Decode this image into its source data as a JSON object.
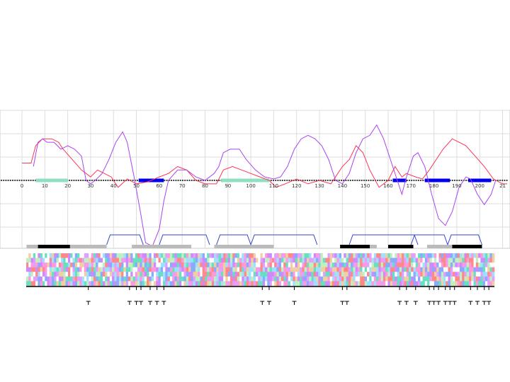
{
  "chart_data": {
    "type": "line",
    "x_ticks": [
      "0",
      "10",
      "20",
      "30",
      "40",
      "50",
      "60",
      "70",
      "80",
      "90",
      "100",
      "110",
      "120",
      "130",
      "140",
      "150",
      "160",
      "170",
      "180",
      "190",
      "200",
      "21"
    ],
    "xlim": [
      0,
      212
    ],
    "ylim": [
      -1.0,
      1.0
    ],
    "grid": true,
    "series": [
      {
        "color": "#ff3355",
        "points": [
          [
            0,
            0.25
          ],
          [
            4,
            0.25
          ],
          [
            6,
            0.5
          ],
          [
            9,
            0.6
          ],
          [
            11,
            0.6
          ],
          [
            13,
            0.6
          ],
          [
            16,
            0.55
          ],
          [
            18,
            0.45
          ],
          [
            22,
            0.3
          ],
          [
            26,
            0.15
          ],
          [
            30,
            0.05
          ],
          [
            33,
            0.15
          ],
          [
            36,
            0.1
          ],
          [
            39,
            0.05
          ],
          [
            42,
            -0.1
          ],
          [
            46,
            0.02
          ],
          [
            50,
            -0.05
          ],
          [
            55,
            -0.02
          ],
          [
            60,
            0.05
          ],
          [
            64,
            0.1
          ],
          [
            68,
            0.2
          ],
          [
            72,
            0.15
          ],
          [
            76,
            0.0
          ],
          [
            80,
            -0.05
          ],
          [
            85,
            -0.05
          ],
          [
            88,
            0.15
          ],
          [
            92,
            0.2
          ],
          [
            96,
            0.15
          ],
          [
            100,
            0.1
          ],
          [
            104,
            0.05
          ],
          [
            108,
            0.0
          ],
          [
            111,
            -0.1
          ],
          [
            115,
            -0.05
          ],
          [
            120,
            0.02
          ],
          [
            125,
            -0.05
          ],
          [
            130,
            0.0
          ],
          [
            135,
            -0.05
          ],
          [
            138,
            0.1
          ],
          [
            140,
            0.2
          ],
          [
            143,
            0.3
          ],
          [
            146,
            0.5
          ],
          [
            149,
            0.4
          ],
          [
            152,
            0.15
          ],
          [
            156,
            -0.1
          ],
          [
            160,
            0.0
          ],
          [
            163,
            0.2
          ],
          [
            166,
            0.05
          ],
          [
            168,
            0.1
          ],
          [
            172,
            0.05
          ],
          [
            175,
            0.02
          ],
          [
            178,
            0.15
          ],
          [
            181,
            0.3
          ],
          [
            184,
            0.45
          ],
          [
            188,
            0.6
          ],
          [
            191,
            0.55
          ],
          [
            194,
            0.5
          ],
          [
            198,
            0.35
          ],
          [
            202,
            0.2
          ],
          [
            206,
            0.02
          ],
          [
            210,
            -0.05
          ],
          [
            212,
            -0.05
          ]
        ]
      },
      {
        "color": "#aa44ee",
        "points": [
          [
            5,
            0.2
          ],
          [
            7,
            0.55
          ],
          [
            9,
            0.6
          ],
          [
            11,
            0.55
          ],
          [
            14,
            0.55
          ],
          [
            17,
            0.45
          ],
          [
            20,
            0.5
          ],
          [
            23,
            0.45
          ],
          [
            26,
            0.35
          ],
          [
            28,
            0.0
          ],
          [
            30,
            -0.05
          ],
          [
            32,
            0.0
          ],
          [
            35,
            0.1
          ],
          [
            38,
            0.3
          ],
          [
            41,
            0.55
          ],
          [
            44,
            0.7
          ],
          [
            46,
            0.55
          ],
          [
            49,
            0.05
          ],
          [
            52,
            -0.5
          ],
          [
            54,
            -0.9
          ],
          [
            57,
            -0.95
          ],
          [
            60,
            -0.7
          ],
          [
            62,
            -0.3
          ],
          [
            64,
            0.0
          ],
          [
            68,
            0.15
          ],
          [
            72,
            0.15
          ],
          [
            76,
            0.05
          ],
          [
            80,
            0.0
          ],
          [
            84,
            0.1
          ],
          [
            86,
            0.2
          ],
          [
            88,
            0.4
          ],
          [
            91,
            0.45
          ],
          [
            95,
            0.45
          ],
          [
            98,
            0.3
          ],
          [
            102,
            0.15
          ],
          [
            106,
            0.05
          ],
          [
            110,
            0.02
          ],
          [
            113,
            0.05
          ],
          [
            116,
            0.2
          ],
          [
            119,
            0.45
          ],
          [
            122,
            0.6
          ],
          [
            125,
            0.65
          ],
          [
            128,
            0.6
          ],
          [
            131,
            0.5
          ],
          [
            134,
            0.3
          ],
          [
            137,
            0.0
          ],
          [
            140,
            -0.05
          ],
          [
            143,
            0.1
          ],
          [
            146,
            0.4
          ],
          [
            149,
            0.6
          ],
          [
            152,
            0.65
          ],
          [
            155,
            0.8
          ],
          [
            158,
            0.6
          ],
          [
            161,
            0.3
          ],
          [
            164,
            0.0
          ],
          [
            166,
            -0.2
          ],
          [
            168,
            0.05
          ],
          [
            171,
            0.35
          ],
          [
            173,
            0.4
          ],
          [
            176,
            0.2
          ],
          [
            179,
            -0.2
          ],
          [
            182,
            -0.55
          ],
          [
            185,
            -0.65
          ],
          [
            188,
            -0.45
          ],
          [
            191,
            -0.1
          ],
          [
            194,
            0.05
          ],
          [
            196,
            0.02
          ],
          [
            199,
            -0.2
          ],
          [
            202,
            -0.35
          ],
          [
            205,
            -0.2
          ],
          [
            207,
            0.0
          ]
        ]
      }
    ],
    "dotted_baseline_color": "#333333",
    "segments": [
      {
        "x0": 6,
        "x1": 20,
        "color": "#8fe0c0"
      },
      {
        "x0": 51,
        "x1": 62,
        "color": "#0000ee"
      },
      {
        "x0": 87,
        "x1": 108,
        "color": "#8fe0c0"
      },
      {
        "x0": 162,
        "x1": 168,
        "color": "#0000ee"
      },
      {
        "x0": 176,
        "x1": 187,
        "color": "#0000ee"
      },
      {
        "x0": 195,
        "x1": 205,
        "color": "#0000ee"
      }
    ],
    "tracks": {
      "bars": [
        {
          "x0": 2,
          "x1": 7,
          "color": "#bbbbbb"
        },
        {
          "x0": 7,
          "x1": 21,
          "color": "#000000"
        },
        {
          "x0": 21,
          "x1": 37,
          "color": "#bbbbbb"
        },
        {
          "x0": 48,
          "x1": 74,
          "color": "#bbbbbb"
        },
        {
          "x0": 84,
          "x1": 110,
          "color": "#bbbbbb"
        },
        {
          "x0": 139,
          "x1": 152,
          "color": "#000000"
        },
        {
          "x0": 152,
          "x1": 155,
          "color": "#bbbbbb"
        },
        {
          "x0": 160,
          "x1": 171,
          "color": "#000000"
        },
        {
          "x0": 177,
          "x1": 188,
          "color": "#bbbbbb"
        },
        {
          "x0": 188,
          "x1": 201,
          "color": "#000000"
        }
      ],
      "connections": [
        {
          "x0": 37,
          "x1": 53
        },
        {
          "x0": 60,
          "x1": 82
        },
        {
          "x0": 85,
          "x1": 100
        },
        {
          "x0": 100,
          "x1": 129
        },
        {
          "x0": 143,
          "x1": 173
        },
        {
          "x0": 170,
          "x1": 186
        },
        {
          "x0": 186,
          "x1": 201
        }
      ],
      "color": "#3344cc"
    },
    "alignment": {
      "columns": 202,
      "rows": 7,
      "palette": [
        "#66e0c0",
        "#ff8888",
        "#d088ff",
        "#88aaff",
        "#ffffff",
        "#c0f0c0",
        "#ff99dd",
        "#a0e0ff",
        "#f0d0a0",
        "#e0a0ff"
      ]
    },
    "markers": [
      29,
      47,
      50,
      52,
      56,
      59,
      62,
      105,
      108,
      119,
      140,
      142,
      165,
      168,
      172,
      178,
      180,
      182,
      185,
      187,
      189,
      196,
      199,
      202,
      204
    ]
  }
}
